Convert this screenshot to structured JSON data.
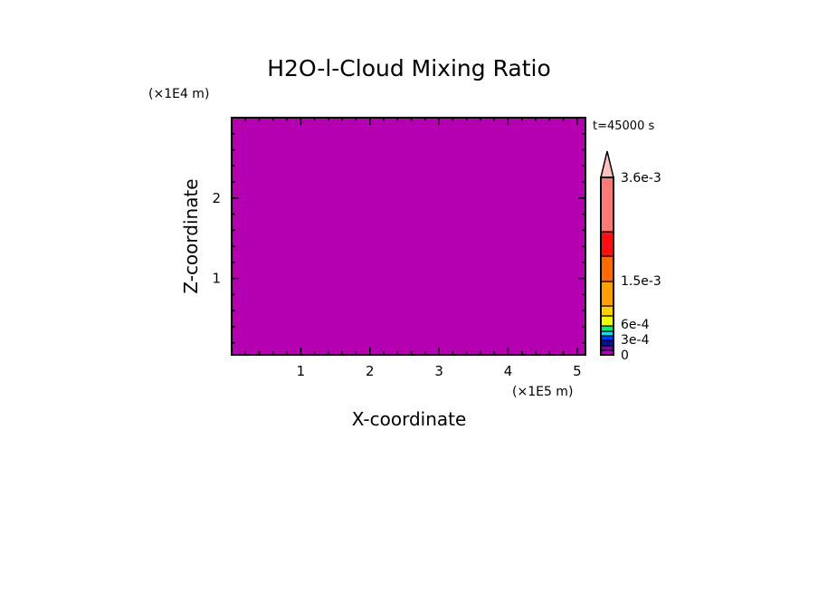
{
  "chart_data": {
    "type": "heatmap",
    "title": "H2O-l-Cloud Mixing Ratio",
    "xlabel": "X-coordinate",
    "ylabel": "Z-coordinate",
    "x_scale_label": "(×1E5 m)",
    "y_scale_label": "(×1E4 m)",
    "time_label": "t=45000 s",
    "xlim": [
      0,
      5.12
    ],
    "ylim": [
      0.05,
      3.0
    ],
    "x_ticks": [
      "1",
      "2",
      "3",
      "4",
      "5"
    ],
    "y_ticks": [
      "1",
      "2"
    ],
    "field_value": 0,
    "field_color": "#b400b0",
    "colorbar": {
      "colors": [
        "#b000b0",
        "#7a00b0",
        "#0010a0",
        "#0038ff",
        "#00e0ff",
        "#00f070",
        "#f0ff00",
        "#ffd000",
        "#ffa000",
        "#ff6a00",
        "#ff1010",
        "#ff7878"
      ],
      "extend_color": "#ffc0c0",
      "tick_labels": [
        "0",
        "3e-4",
        "6e-4",
        "1.5e-3",
        "3.6e-3"
      ]
    }
  }
}
